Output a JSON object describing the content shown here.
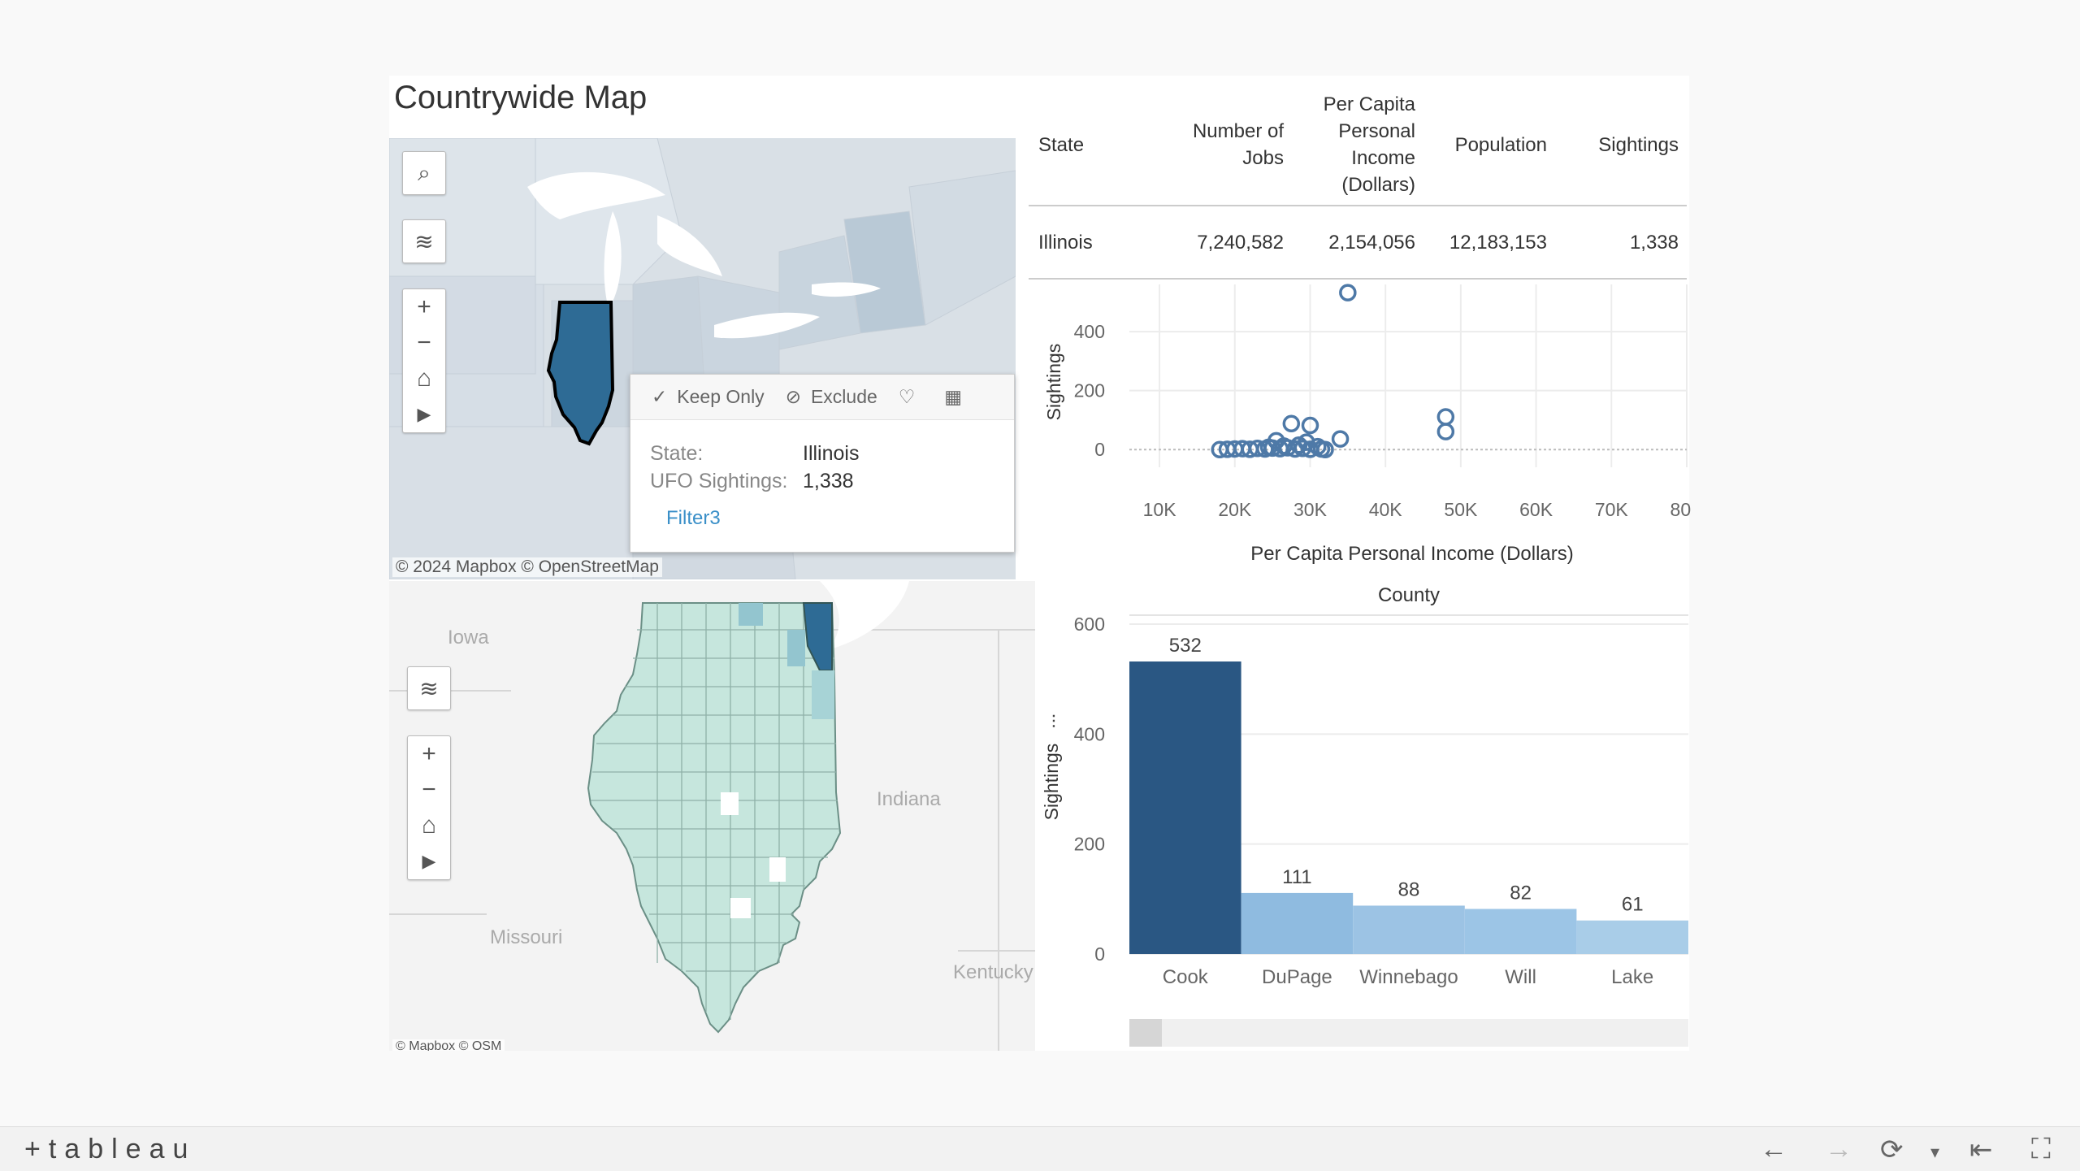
{
  "title": "Countrywide Map",
  "map1": {
    "attribution": "© 2024 Mapbox  © OpenStreetMap",
    "selected_state_color": "#2e6b95"
  },
  "tooltip": {
    "keep_only": "Keep Only",
    "exclude": "Exclude",
    "state_label": "State:",
    "state_value": "Illinois",
    "sightings_label": "UFO Sightings:",
    "sightings_value": "1,338",
    "link": "Filter3"
  },
  "map2": {
    "attribution": "© Mapbox  © OSM",
    "labels": {
      "iowa": "Iowa",
      "indiana": "Indiana",
      "missouri": "Missouri",
      "kentucky": "Kentucky"
    }
  },
  "table": {
    "headers": {
      "state": "State",
      "jobs": "Number of Jobs",
      "income": "Per Capita Personal Income (Dollars)",
      "population": "Population",
      "sightings": "Sightings"
    },
    "rows": [
      {
        "state": "Illinois",
        "jobs": "7,240,582",
        "income": "2,154,056",
        "population": "12,183,153",
        "sightings": "1,338"
      }
    ]
  },
  "chart_data": [
    {
      "type": "scatter",
      "title": "",
      "xlabel": "Per Capita Personal Income (Dollars)",
      "ylabel": "Sightings",
      "x_ticks": [
        "10K",
        "20K",
        "30K",
        "40K",
        "50K",
        "60K",
        "70K",
        "80K"
      ],
      "y_ticks": [
        "0",
        "200",
        "400"
      ],
      "xlim": [
        6000,
        80000
      ],
      "ylim": [
        -60,
        560
      ],
      "points": [
        {
          "x": 35000,
          "y": 532
        },
        {
          "x": 48000,
          "y": 111
        },
        {
          "x": 48000,
          "y": 61
        },
        {
          "x": 27500,
          "y": 88
        },
        {
          "x": 30000,
          "y": 82
        },
        {
          "x": 34000,
          "y": 36
        },
        {
          "x": 25500,
          "y": 30
        },
        {
          "x": 29500,
          "y": 25
        },
        {
          "x": 31000,
          "y": 10
        },
        {
          "x": 18000,
          "y": 0
        },
        {
          "x": 19000,
          "y": 1
        },
        {
          "x": 20000,
          "y": 2
        },
        {
          "x": 21000,
          "y": 3
        },
        {
          "x": 22000,
          "y": 1
        },
        {
          "x": 23000,
          "y": 4
        },
        {
          "x": 24000,
          "y": 2
        },
        {
          "x": 25000,
          "y": 5
        },
        {
          "x": 26000,
          "y": 3
        },
        {
          "x": 27000,
          "y": 6
        },
        {
          "x": 28000,
          "y": 2
        },
        {
          "x": 29000,
          "y": 4
        },
        {
          "x": 30000,
          "y": 1
        },
        {
          "x": 31500,
          "y": 2
        },
        {
          "x": 32000,
          "y": 0
        },
        {
          "x": 26500,
          "y": 12
        },
        {
          "x": 28500,
          "y": 15
        },
        {
          "x": 24500,
          "y": 8
        }
      ],
      "point_color": "#4e79a7"
    },
    {
      "type": "bar",
      "title": "County",
      "xlabel": "",
      "ylabel": "Sightings",
      "categories": [
        "Cook",
        "DuPage",
        "Winnebago",
        "Will",
        "Lake"
      ],
      "values": [
        532,
        111,
        88,
        82,
        61
      ],
      "y_ticks": [
        "0",
        "200",
        "400",
        "600"
      ],
      "ylim": [
        0,
        600
      ],
      "colors": [
        "#2a5783",
        "#8fbbe0",
        "#9cc3e4",
        "#9cc5e6",
        "#a9cde8"
      ]
    }
  ],
  "footer": {
    "logo": "+tableau"
  }
}
